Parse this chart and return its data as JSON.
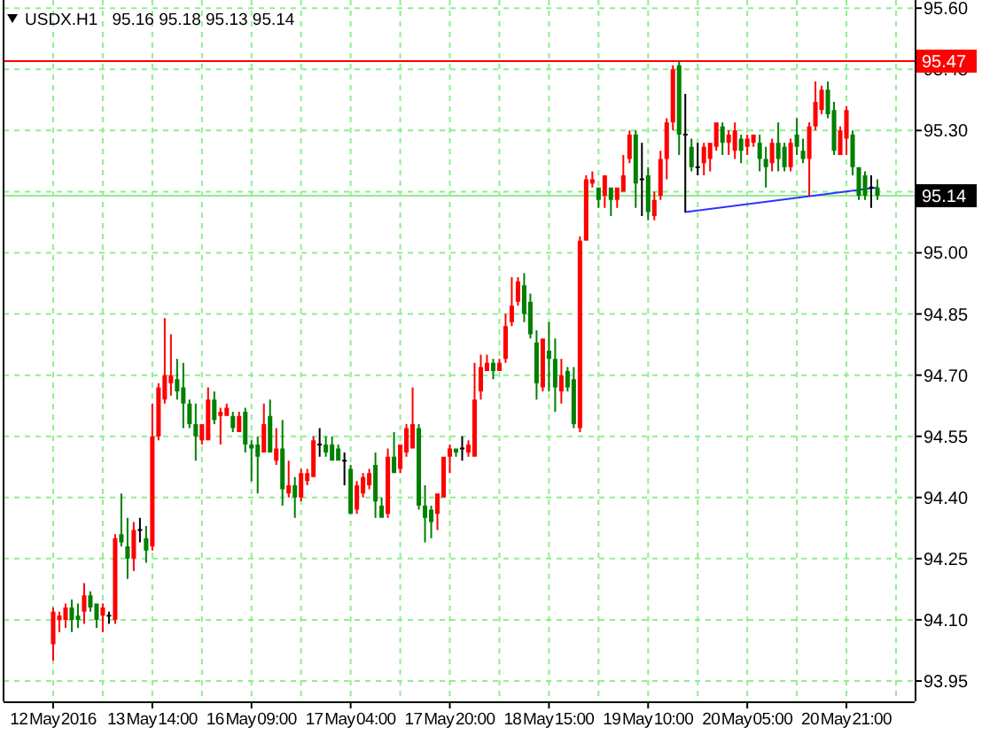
{
  "chart_data": {
    "type": "candlestick",
    "title": "USDX.H1",
    "subtitle": "95.16 95.18 95.13 95.14",
    "categories": [
      "12 May 2016",
      null,
      null,
      null,
      null,
      null,
      null,
      null,
      null,
      null,
      null,
      null,
      null,
      null,
      null,
      null,
      "13 May 14:00",
      null,
      null,
      null,
      null,
      null,
      null,
      null,
      null,
      null,
      null,
      null,
      null,
      null,
      null,
      null,
      "16 May 09:00",
      null,
      null,
      null,
      null,
      null,
      null,
      null,
      null,
      null,
      null,
      null,
      null,
      null,
      null,
      null,
      "17 May 04:00",
      null,
      null,
      null,
      null,
      null,
      null,
      null,
      null,
      null,
      null,
      null,
      null,
      null,
      null,
      null,
      "17 May 20:00",
      null,
      null,
      null,
      null,
      null,
      null,
      null,
      null,
      null,
      null,
      null,
      null,
      null,
      null,
      null,
      "18 May 15:00",
      null,
      null,
      null,
      null,
      null,
      null,
      null,
      null,
      null,
      null,
      null,
      null,
      null,
      null,
      null,
      "19 May 10:00",
      null,
      null,
      null,
      null,
      null,
      null,
      null,
      null,
      null,
      null,
      null,
      null,
      null,
      null,
      null,
      "20 May 05:00",
      null,
      null,
      null,
      null,
      null,
      null,
      null,
      null,
      null,
      null,
      null,
      null,
      null,
      null,
      null,
      "20 May 21:00",
      null,
      null,
      null,
      null,
      null
    ],
    "ohlc": [
      [
        94.04,
        94.13,
        94.0,
        94.12
      ],
      [
        94.1,
        94.12,
        94.07,
        94.11
      ],
      [
        94.1,
        94.14,
        94.08,
        94.13
      ],
      [
        94.13,
        94.15,
        94.07,
        94.1
      ],
      [
        94.11,
        94.14,
        94.08,
        94.1
      ],
      [
        94.12,
        94.19,
        94.09,
        94.16
      ],
      [
        94.16,
        94.17,
        94.12,
        94.13
      ],
      [
        94.14,
        94.14,
        94.08,
        94.1
      ],
      [
        94.11,
        94.14,
        94.07,
        94.13
      ],
      [
        94.11,
        94.12,
        94.09,
        94.11
      ],
      [
        94.1,
        94.31,
        94.09,
        94.3
      ],
      [
        94.31,
        94.41,
        94.28,
        94.29
      ],
      [
        94.28,
        94.35,
        94.2,
        94.25
      ],
      [
        94.25,
        94.34,
        94.22,
        94.32
      ],
      [
        94.32,
        94.35,
        94.29,
        94.32
      ],
      [
        94.3,
        94.33,
        94.24,
        94.27
      ],
      [
        94.28,
        94.63,
        94.27,
        94.55
      ],
      [
        94.55,
        94.68,
        94.54,
        94.67
      ],
      [
        94.64,
        94.84,
        94.63,
        94.7
      ],
      [
        94.68,
        94.8,
        94.65,
        94.7
      ],
      [
        94.69,
        94.74,
        94.64,
        94.66
      ],
      [
        94.67,
        94.73,
        94.57,
        94.63
      ],
      [
        94.63,
        94.64,
        94.57,
        94.58
      ],
      [
        94.58,
        94.63,
        94.49,
        94.55
      ],
      [
        94.54,
        94.58,
        94.53,
        94.58
      ],
      [
        94.54,
        94.67,
        94.54,
        94.64
      ],
      [
        94.64,
        94.66,
        94.58,
        94.59
      ],
      [
        94.6,
        94.62,
        94.53,
        94.61
      ],
      [
        94.6,
        94.63,
        94.6,
        94.62
      ],
      [
        94.6,
        94.61,
        94.56,
        94.57
      ],
      [
        94.56,
        94.61,
        94.56,
        94.6
      ],
      [
        94.61,
        94.62,
        94.51,
        94.53
      ],
      [
        94.53,
        94.54,
        94.44,
        94.52
      ],
      [
        94.53,
        94.55,
        94.41,
        94.5
      ],
      [
        94.51,
        94.63,
        94.51,
        94.58
      ],
      [
        94.6,
        94.64,
        94.51,
        94.51
      ],
      [
        94.49,
        94.57,
        94.48,
        94.52
      ],
      [
        94.52,
        94.59,
        94.38,
        94.42
      ],
      [
        94.41,
        94.49,
        94.4,
        94.43
      ],
      [
        94.43,
        94.45,
        94.35,
        94.4
      ],
      [
        94.4,
        94.47,
        94.39,
        94.46
      ],
      [
        94.44,
        94.47,
        94.43,
        94.46
      ],
      [
        94.45,
        94.55,
        94.45,
        94.54
      ],
      [
        94.53,
        94.57,
        94.5,
        94.53
      ],
      [
        94.53,
        94.55,
        94.5,
        94.51
      ],
      [
        94.53,
        94.55,
        94.49,
        94.49
      ],
      [
        94.52,
        94.53,
        94.49,
        94.49
      ],
      [
        94.49,
        94.51,
        94.43,
        94.49
      ],
      [
        94.47,
        94.48,
        94.36,
        94.36
      ],
      [
        94.37,
        94.44,
        94.36,
        94.43
      ],
      [
        94.41,
        94.46,
        94.4,
        94.45
      ],
      [
        94.43,
        94.47,
        94.42,
        94.46
      ],
      [
        94.48,
        94.51,
        94.35,
        94.39
      ],
      [
        94.38,
        94.4,
        94.35,
        94.35
      ],
      [
        94.36,
        94.52,
        94.35,
        94.5
      ],
      [
        94.5,
        94.56,
        94.46,
        94.46
      ],
      [
        94.47,
        94.53,
        94.46,
        94.53
      ],
      [
        94.51,
        94.58,
        94.5,
        94.57
      ],
      [
        94.52,
        94.67,
        94.52,
        94.58
      ],
      [
        94.57,
        94.58,
        94.37,
        94.38
      ],
      [
        94.38,
        94.43,
        94.29,
        94.35
      ],
      [
        94.37,
        94.38,
        94.3,
        94.34
      ],
      [
        94.36,
        94.41,
        94.32,
        94.41
      ],
      [
        94.4,
        94.5,
        94.4,
        94.5
      ],
      [
        94.5,
        94.53,
        94.46,
        94.52
      ],
      [
        94.52,
        94.52,
        94.5,
        94.51
      ],
      [
        94.52,
        94.55,
        94.49,
        94.52
      ],
      [
        94.51,
        94.54,
        94.5,
        94.53
      ],
      [
        94.5,
        94.73,
        94.5,
        94.64
      ],
      [
        94.66,
        94.75,
        94.64,
        94.72
      ],
      [
        94.71,
        94.75,
        94.71,
        94.73
      ],
      [
        94.73,
        94.74,
        94.69,
        94.71
      ],
      [
        94.71,
        94.74,
        94.71,
        94.73
      ],
      [
        94.74,
        94.85,
        94.73,
        94.82
      ],
      [
        94.83,
        94.94,
        94.82,
        94.87
      ],
      [
        94.88,
        94.94,
        94.87,
        94.93
      ],
      [
        94.92,
        94.95,
        94.83,
        94.85
      ],
      [
        94.88,
        94.9,
        94.79,
        94.8
      ],
      [
        94.78,
        94.81,
        94.64,
        94.68
      ],
      [
        94.67,
        94.79,
        94.66,
        94.79
      ],
      [
        94.76,
        94.83,
        94.66,
        94.74
      ],
      [
        94.74,
        94.79,
        94.61,
        94.67
      ],
      [
        94.66,
        94.74,
        94.63,
        94.7
      ],
      [
        94.71,
        94.72,
        94.66,
        94.67
      ],
      [
        94.69,
        94.72,
        94.57,
        94.58
      ],
      [
        94.57,
        95.04,
        94.56,
        95.03
      ],
      [
        95.03,
        95.19,
        95.03,
        95.18
      ],
      [
        95.17,
        95.2,
        95.16,
        95.18
      ],
      [
        95.16,
        95.16,
        95.11,
        95.13
      ],
      [
        95.14,
        95.19,
        95.11,
        95.19
      ],
      [
        95.16,
        95.16,
        95.09,
        95.13
      ],
      [
        95.13,
        95.16,
        95.11,
        95.16
      ],
      [
        95.15,
        95.24,
        95.15,
        95.19
      ],
      [
        95.23,
        95.3,
        95.22,
        95.29
      ],
      [
        95.29,
        95.3,
        95.11,
        95.17
      ],
      [
        95.18,
        95.27,
        95.09,
        95.18
      ],
      [
        95.19,
        95.21,
        95.08,
        95.1
      ],
      [
        95.09,
        95.15,
        95.08,
        95.13
      ],
      [
        95.14,
        95.25,
        95.13,
        95.23
      ],
      [
        95.23,
        95.33,
        95.18,
        95.32
      ],
      [
        95.32,
        95.46,
        95.3,
        95.45
      ],
      [
        95.46,
        95.47,
        95.24,
        95.29
      ],
      [
        95.29,
        95.39,
        95.1,
        95.29
      ],
      [
        95.26,
        95.28,
        95.2,
        95.21
      ],
      [
        95.21,
        95.27,
        95.19,
        95.21
      ],
      [
        95.22,
        95.27,
        95.19,
        95.26
      ],
      [
        95.23,
        95.27,
        95.2,
        95.27
      ],
      [
        95.26,
        95.32,
        95.25,
        95.32
      ],
      [
        95.31,
        95.32,
        95.24,
        95.27
      ],
      [
        95.27,
        95.3,
        95.24,
        95.29
      ],
      [
        95.25,
        95.32,
        95.23,
        95.3
      ],
      [
        95.28,
        95.29,
        95.22,
        95.25
      ],
      [
        95.26,
        95.29,
        95.24,
        95.28
      ],
      [
        95.27,
        95.29,
        95.26,
        95.29
      ],
      [
        95.27,
        95.29,
        95.2,
        95.23
      ],
      [
        95.23,
        95.26,
        95.16,
        95.21
      ],
      [
        95.22,
        95.28,
        95.2,
        95.27
      ],
      [
        95.27,
        95.32,
        95.2,
        95.23
      ],
      [
        95.26,
        95.27,
        95.2,
        95.21
      ],
      [
        95.21,
        95.28,
        95.2,
        95.27
      ],
      [
        95.29,
        95.33,
        95.24,
        95.26
      ],
      [
        95.25,
        95.28,
        95.22,
        95.23
      ],
      [
        95.23,
        95.32,
        95.14,
        95.31
      ],
      [
        95.31,
        95.42,
        95.3,
        95.37
      ],
      [
        95.35,
        95.41,
        95.34,
        95.4
      ],
      [
        95.4,
        95.42,
        95.33,
        95.34
      ],
      [
        95.35,
        95.37,
        95.24,
        95.25
      ],
      [
        95.24,
        95.31,
        95.24,
        95.3
      ],
      [
        95.28,
        95.36,
        95.24,
        95.35
      ],
      [
        95.29,
        95.3,
        95.19,
        95.21
      ],
      [
        95.21,
        95.21,
        95.13,
        95.14
      ],
      [
        95.19,
        95.2,
        95.13,
        95.14
      ],
      [
        95.16,
        95.19,
        95.11,
        95.16
      ],
      [
        95.16,
        95.18,
        95.13,
        95.14
      ]
    ],
    "colors": [
      "#ff0000",
      "#ff0000",
      "#ff0000",
      "#008000",
      "#008000",
      "#ff0000",
      "#008000",
      "#008000",
      "#ff0000",
      "#000000",
      "#ff0000",
      "#008000",
      "#008000",
      "#ff0000",
      "#000000",
      "#008000",
      "#ff0000",
      "#ff0000",
      "#ff0000",
      "#ff0000",
      "#008000",
      "#008000",
      "#008000",
      "#008000",
      "#ff0000",
      "#ff0000",
      "#008000",
      "#ff0000",
      "#ff0000",
      "#008000",
      "#ff0000",
      "#008000",
      "#008000",
      "#008000",
      "#ff0000",
      "#008000",
      "#ff0000",
      "#008000",
      "#ff0000",
      "#008000",
      "#ff0000",
      "#ff0000",
      "#ff0000",
      "#000000",
      "#008000",
      "#008000",
      "#008000",
      "#000000",
      "#008000",
      "#ff0000",
      "#ff0000",
      "#ff0000",
      "#008000",
      "#008000",
      "#ff0000",
      "#008000",
      "#ff0000",
      "#ff0000",
      "#ff0000",
      "#008000",
      "#008000",
      "#008000",
      "#ff0000",
      "#ff0000",
      "#ff0000",
      "#008000",
      "#000000",
      "#ff0000",
      "#ff0000",
      "#ff0000",
      "#ff0000",
      "#008000",
      "#ff0000",
      "#ff0000",
      "#ff0000",
      "#ff0000",
      "#008000",
      "#008000",
      "#008000",
      "#ff0000",
      "#008000",
      "#008000",
      "#ff0000",
      "#008000",
      "#008000",
      "#ff0000",
      "#ff0000",
      "#ff0000",
      "#008000",
      "#ff0000",
      "#008000",
      "#ff0000",
      "#ff0000",
      "#ff0000",
      "#008000",
      "#000000",
      "#008000",
      "#ff0000",
      "#ff0000",
      "#ff0000",
      "#ff0000",
      "#008000",
      "#000000",
      "#008000",
      "#000000",
      "#ff0000",
      "#ff0000",
      "#ff0000",
      "#008000",
      "#ff0000",
      "#ff0000",
      "#008000",
      "#ff0000",
      "#ff0000",
      "#008000",
      "#008000",
      "#ff0000",
      "#008000",
      "#008000",
      "#ff0000",
      "#008000",
      "#008000",
      "#ff0000",
      "#ff0000",
      "#ff0000",
      "#008000",
      "#008000",
      "#ff0000",
      "#ff0000",
      "#008000",
      "#008000",
      "#008000",
      "#000000",
      "#008000"
    ],
    "series": [
      {
        "type": "line",
        "color": "#3333ff",
        "values": [
          null,
          null,
          null,
          null,
          null,
          null,
          null,
          null,
          null,
          null,
          null,
          null,
          null,
          null,
          null,
          null,
          null,
          null,
          null,
          null,
          null,
          null,
          null,
          null,
          null,
          null,
          null,
          null,
          null,
          null,
          null,
          null,
          null,
          null,
          null,
          null,
          null,
          null,
          null,
          null,
          null,
          null,
          null,
          null,
          null,
          null,
          null,
          null,
          null,
          null,
          null,
          null,
          null,
          null,
          null,
          null,
          null,
          null,
          null,
          null,
          null,
          null,
          null,
          null,
          null,
          null,
          null,
          null,
          null,
          null,
          null,
          null,
          null,
          null,
          null,
          null,
          null,
          null,
          null,
          null,
          null,
          null,
          null,
          null,
          null,
          null,
          null,
          null,
          null,
          null,
          null,
          null,
          null,
          null,
          null,
          null,
          null,
          null,
          null,
          null,
          null,
          null,
          95.1,
          null,
          null,
          null,
          null,
          null,
          null,
          null,
          null,
          null,
          null,
          null,
          null,
          null,
          null,
          null,
          null,
          null,
          null,
          null,
          null,
          null,
          null,
          null,
          null,
          null,
          null,
          null,
          null,
          null,
          null,
          95.16
        ]
      }
    ],
    "ylim": [
      93.9,
      95.62
    ],
    "yticks": [
      {
        "value": 95.6,
        "label": "95.60"
      },
      95.45,
      {
        "value": 95.3,
        "label": "95.30"
      },
      {
        "value": 95.15,
        "label": null
      },
      {
        "value": 95,
        "label": "95.00"
      },
      94.85,
      {
        "value": 94.7,
        "label": "94.70"
      },
      94.55,
      {
        "value": 94.4,
        "label": "94.40"
      },
      94.25,
      {
        "value": 94.1,
        "label": "94.10"
      },
      93.95
    ],
    "grid": true,
    "ref_lines": [
      {
        "axis": "y",
        "value": 95.47,
        "label": "95.47",
        "color": "#ff0000"
      },
      {
        "axis": "y",
        "value": 95.14,
        "label": "95.14",
        "color": "#90ee90"
      }
    ]
  }
}
